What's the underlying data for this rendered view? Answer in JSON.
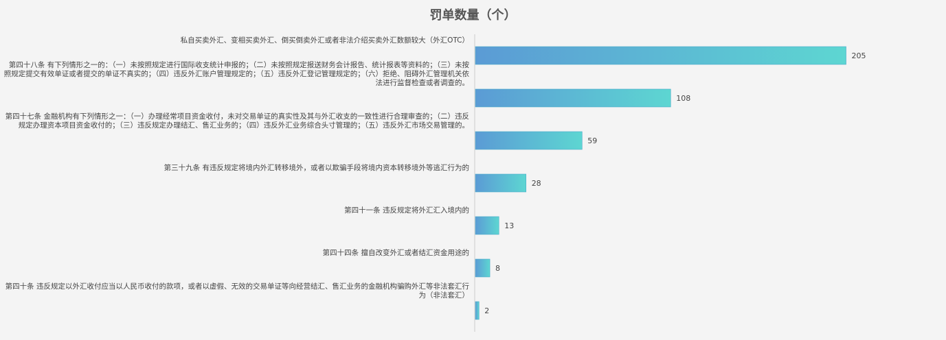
{
  "chart_data": {
    "type": "bar",
    "orientation": "horizontal",
    "title": "罚单数量（个）",
    "categories": [
      "私自买卖外汇、变相买卖外汇、倒买倒卖外汇或者非法介绍买卖外汇数额较大（外汇OTC）",
      "第四十八条 有下列情形之一的：（一）未按照规定进行国际收支统计申报的；（二）未按照规定报送财务会计报告、统计报表等资料的；（三）未按照规定提交有效单证或者提交的单证不真实的；（四）违反外汇账户管理规定的；（五）违反外汇登记管理规定的；（六）拒绝、阻碍外汇管理机关依法进行监督检查或者调查的。",
      "第四十七条 金融机构有下列情形之一：（一）办理经常项目资金收付，未对交易单证的真实性及其与外汇收支的一致性进行合理审查的；（二）违反规定办理资本项目资金收付的；（三）违反规定办理结汇、售汇业务的；（四）违反外汇业务综合头寸管理的；（五）违反外汇市场交易管理的。",
      "第三十九条 有违反规定将境内外汇转移境外，或者以欺骗手段将境内资本转移境外等逃汇行为的",
      "第四十一条 违反规定将外汇汇入境内的",
      "第四十四条 擅自改变外汇或者结汇资金用途的",
      "第四十条 违反规定以外汇收付应当以人民币收付的款项，或者以虚假、无效的交易单证等向经营结汇、售汇业务的金融机构骗购外汇等非法套汇行为（非法套汇）"
    ],
    "values": [
      205,
      108,
      59,
      28,
      13,
      8,
      2
    ],
    "xlim": [
      0,
      220
    ],
    "grid": false,
    "legend": "none",
    "colors": {
      "bar_gradient_start": "#5b9bd5",
      "bar_gradient_end": "#5dd6d2",
      "axis": "#cccccc"
    }
  }
}
